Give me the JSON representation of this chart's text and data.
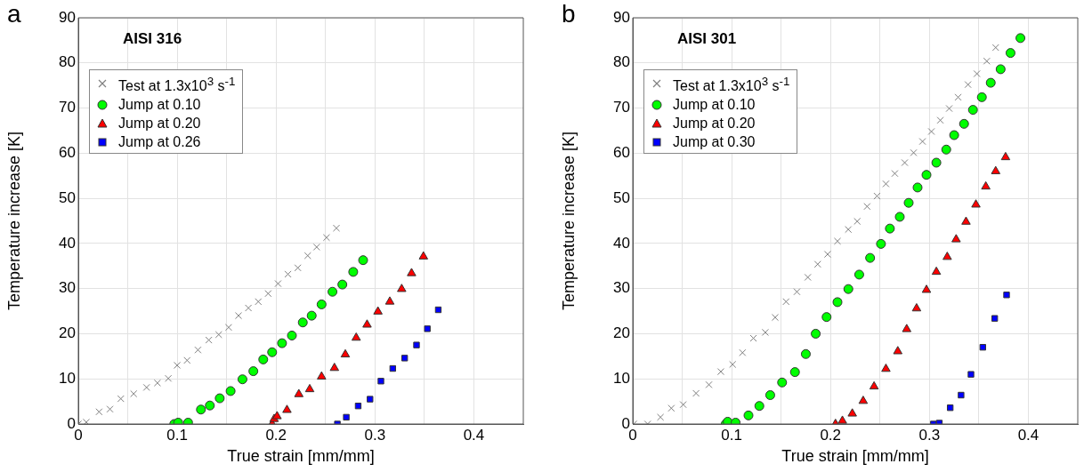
{
  "chart_data": [
    {
      "type": "scatter",
      "title": "AISI 316",
      "xlabel": "True strain [mm/mm]",
      "ylabel": "Temperature increase [K]",
      "annotations": [
        "a"
      ],
      "xlim": [
        0,
        0.45
      ],
      "xticks": [
        0,
        {
          "value": 0.05,
          "label": null
        },
        0.1,
        {
          "value": 0.15,
          "label": null
        },
        0.2,
        {
          "value": 0.25,
          "label": null
        },
        0.3,
        {
          "value": 0.35,
          "label": null
        },
        0.4
      ],
      "ylim": [
        0,
        90
      ],
      "yticks": [
        0,
        10,
        20,
        30,
        40,
        50,
        60,
        70,
        80,
        90
      ],
      "grid": true,
      "legend": "top left",
      "series": [
        {
          "name": "Test at 1.3x10$^{3}$ s$^{-1}$",
          "color": "#808080",
          "marker": "cross",
          "x": [
            0.0,
            0.008,
            0.021,
            0.032,
            0.043,
            0.056,
            0.069,
            0.08,
            0.091,
            0.1,
            0.11,
            0.121,
            0.132,
            0.142,
            0.152,
            0.162,
            0.172,
            0.182,
            0.192,
            0.202,
            0.212,
            0.222,
            0.232,
            0.241,
            0.251,
            0.261
          ],
          "values": [
            0.0,
            0.4,
            2.7,
            3.3,
            5.6,
            6.7,
            8.1,
            9.1,
            10.1,
            13.0,
            14.1,
            16.4,
            18.6,
            19.8,
            21.4,
            24.0,
            25.7,
            27.1,
            28.9,
            31.1,
            33.2,
            34.6,
            37.3,
            39.2,
            41.3,
            43.4
          ]
        },
        {
          "name": "Jump at 0.10",
          "color": "#00ff00",
          "marker": "circle",
          "x": [
            0.097,
            0.101,
            0.111,
            0.124,
            0.133,
            0.143,
            0.154,
            0.166,
            0.177,
            0.187,
            0.196,
            0.206,
            0.216,
            0.227,
            0.236,
            0.246,
            0.257,
            0.267,
            0.278,
            0.288
          ],
          "values": [
            0.0,
            0.3,
            0.3,
            3.2,
            4.1,
            5.7,
            7.3,
            9.9,
            11.7,
            14.3,
            15.9,
            17.9,
            19.6,
            22.5,
            24.0,
            26.5,
            29.3,
            30.9,
            33.7,
            36.3
          ]
        },
        {
          "name": "Jump at 0.20",
          "color": "#ff0000",
          "marker": "triangle",
          "x": [
            0.196,
            0.198,
            0.201,
            0.211,
            0.223,
            0.234,
            0.246,
            0.259,
            0.27,
            0.281,
            0.292,
            0.303,
            0.315,
            0.327,
            0.337,
            0.349
          ],
          "values": [
            0.0,
            1.1,
            1.7,
            3.1,
            6.6,
            7.7,
            10.5,
            12.4,
            15.4,
            19.1,
            22.0,
            24.9,
            27.1,
            29.9,
            33.4,
            37.1
          ]
        },
        {
          "name": "Jump at 0.26",
          "color": "#0000ff",
          "marker": "square",
          "x": [
            0.262,
            0.271,
            0.283,
            0.295,
            0.306,
            0.318,
            0.33,
            0.342,
            0.353,
            0.364
          ],
          "values": [
            0.0,
            1.5,
            4.0,
            5.5,
            9.5,
            12.3,
            14.6,
            17.5,
            21.1,
            25.3
          ]
        }
      ]
    },
    {
      "type": "scatter",
      "title": "AISI 301",
      "xlabel": "True strain [mm/mm]",
      "ylabel": "Temperature increase [K]",
      "annotations": [
        "b"
      ],
      "xlim": [
        0,
        0.45
      ],
      "xticks": [
        0,
        {
          "value": 0.05,
          "label": null
        },
        0.1,
        {
          "value": 0.15,
          "label": null
        },
        0.2,
        {
          "value": 0.25,
          "label": null
        },
        0.3,
        {
          "value": 0.35,
          "label": null
        },
        0.4
      ],
      "ylim": [
        0,
        90
      ],
      "yticks": [
        0,
        10,
        20,
        30,
        40,
        50,
        60,
        70,
        80,
        90
      ],
      "grid": true,
      "legend": "top left",
      "series": [
        {
          "name": "Test at 1.3x10$^{3}$ s$^{-1}$",
          "color": "#808080",
          "marker": "cross",
          "x": [
            0.001,
            0.015,
            0.028,
            0.039,
            0.051,
            0.064,
            0.077,
            0.089,
            0.101,
            0.111,
            0.122,
            0.134,
            0.144,
            0.155,
            0.166,
            0.177,
            0.187,
            0.197,
            0.207,
            0.218,
            0.227,
            0.237,
            0.247,
            0.256,
            0.265,
            0.275,
            0.284,
            0.293,
            0.302,
            0.311,
            0.32,
            0.329,
            0.339,
            0.348,
            0.358,
            0.367
          ],
          "values": [
            0.0,
            0.0,
            1.5,
            3.5,
            4.3,
            6.8,
            8.7,
            11.6,
            13.2,
            15.8,
            19.0,
            20.3,
            23.6,
            27.1,
            29.3,
            32.5,
            35.4,
            37.6,
            40.5,
            43.1,
            44.9,
            48.2,
            50.5,
            53.2,
            55.5,
            57.9,
            60.1,
            62.6,
            64.8,
            67.3,
            69.9,
            72.4,
            75.2,
            77.6,
            80.4,
            83.4
          ]
        },
        {
          "name": "Jump at 0.10",
          "color": "#00ff00",
          "marker": "circle",
          "x": [
            0.094,
            0.096,
            0.104,
            0.117,
            0.128,
            0.139,
            0.151,
            0.164,
            0.175,
            0.185,
            0.196,
            0.207,
            0.218,
            0.229,
            0.24,
            0.251,
            0.26,
            0.27,
            0.279,
            0.288,
            0.297,
            0.307,
            0.317,
            0.325,
            0.335,
            0.344,
            0.353,
            0.362,
            0.372,
            0.382,
            0.392
          ],
          "values": [
            0.0,
            0.5,
            0.3,
            1.9,
            4.0,
            6.4,
            9.2,
            11.5,
            15.5,
            20.0,
            23.7,
            27.0,
            29.9,
            33.1,
            36.8,
            39.9,
            43.3,
            45.9,
            49.0,
            52.4,
            55.2,
            57.9,
            60.8,
            64.0,
            66.5,
            69.6,
            72.4,
            75.6,
            78.6,
            82.2,
            85.5
          ]
        },
        {
          "name": "Jump at 0.20",
          "color": "#ff0000",
          "marker": "triangle",
          "x": [
            0.205,
            0.212,
            0.222,
            0.233,
            0.244,
            0.256,
            0.268,
            0.277,
            0.287,
            0.297,
            0.307,
            0.318,
            0.327,
            0.337,
            0.347,
            0.357,
            0.367,
            0.377
          ],
          "values": [
            0.0,
            0.7,
            2.3,
            5.1,
            8.3,
            12.2,
            16.1,
            21.0,
            25.6,
            29.7,
            33.7,
            37.0,
            40.9,
            44.8,
            48.6,
            52.6,
            56.0,
            59.1
          ]
        },
        {
          "name": "Jump at 0.30",
          "color": "#0000ff",
          "marker": "square",
          "x": [
            0.304,
            0.31,
            0.321,
            0.332,
            0.342,
            0.354,
            0.366,
            0.378
          ],
          "values": [
            0.0,
            0.2,
            3.6,
            6.4,
            11.0,
            17.0,
            23.4,
            28.6
          ]
        }
      ]
    }
  ]
}
